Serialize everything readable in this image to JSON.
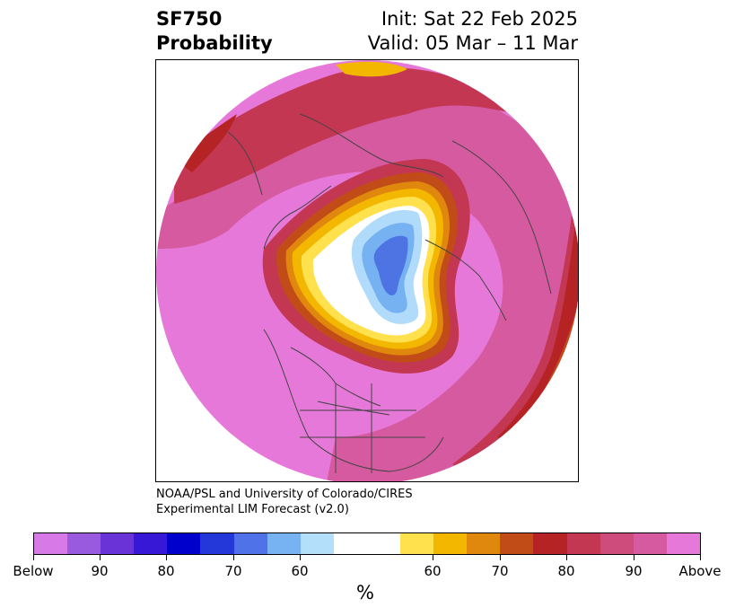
{
  "header": {
    "left_line1": "SF750",
    "left_line2": "Probability",
    "right_line1": "Init: Sat 22 Feb 2025",
    "right_line2": "Valid: 05 Mar – 11 Mar"
  },
  "credit": {
    "line1": "NOAA/PSL and University of Colorado/CIRES",
    "line2": "Experimental LIM Forecast (v2.0)"
  },
  "map": {
    "projection": "north-polar-stereographic",
    "colors": {
      "above_max": "#e678d9",
      "above_90": "#d65aa0",
      "above_80": "#c33752",
      "above_70": "#b52325",
      "above_60": "#c24c17",
      "above_50": "#e0870d",
      "yellow": "#f3b700",
      "light_yellow": "#ffe14d",
      "neutral": "#ffffff",
      "below_60": "#b0dbfb",
      "below_70": "#76b1f1",
      "below_80": "#4e73e2",
      "coastline": "#444444"
    }
  },
  "colorbar": {
    "colors": [
      "#d77ae8",
      "#9a5ae0",
      "#6a33d8",
      "#3618d6",
      "#0000cc",
      "#2438da",
      "#4f72e8",
      "#77b2f2",
      "#b3dffb",
      "#ffffff",
      "#ffe14d",
      "#f3b700",
      "#e0870d",
      "#c24c17",
      "#b52325",
      "#c33752",
      "#cd4c7c",
      "#d65aa0",
      "#e678d9"
    ],
    "tick_labels": [
      "Below",
      "90",
      "80",
      "70",
      "60",
      "60",
      "70",
      "80",
      "90",
      "Above"
    ],
    "unit_label": "%"
  }
}
